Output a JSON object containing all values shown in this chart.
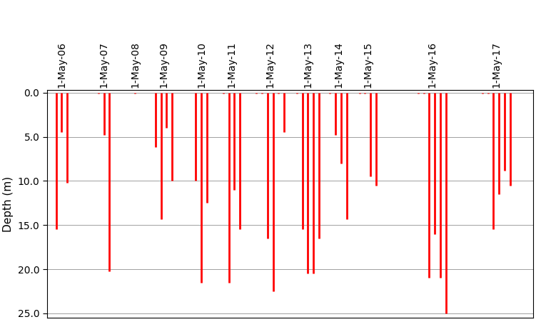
{
  "ylabel": "Depth (m)",
  "bar_color": "#FF0000",
  "background_color": "#FFFFFF",
  "year_labels": [
    "1-May-06",
    "1-May-07",
    "1-May-08",
    "1-May-09",
    "1-May-10",
    "1-May-11",
    "1-May-12",
    "1-May-13",
    "1-May-14",
    "1-May-15",
    "1-May-16",
    "1-May-17"
  ],
  "yticks": [
    0.0,
    5.0,
    10.0,
    15.0,
    20.0,
    25.0
  ],
  "ylim_bottom": 25.5,
  "ylim_top": -0.3,
  "linewidth": 2.0,
  "ylabel_fontsize": 11,
  "tick_fontsize": 10,
  "measurements_per_year": [
    [
      [
        0.25,
        15.5
      ],
      [
        0.55,
        4.5
      ],
      [
        0.85,
        10.2
      ]
    ],
    [
      [
        2.55,
        0.1
      ],
      [
        2.85,
        4.8
      ],
      [
        3.15,
        20.2
      ]
    ],
    [
      [
        4.55,
        0.1
      ]
    ],
    [
      [
        5.65,
        6.2
      ],
      [
        5.95,
        14.3
      ],
      [
        6.25,
        4.0
      ],
      [
        6.55,
        10.0
      ]
    ],
    [
      [
        7.85,
        10.0
      ],
      [
        8.15,
        21.5
      ],
      [
        8.45,
        12.5
      ]
    ],
    [
      [
        9.35,
        0.1
      ],
      [
        9.65,
        21.5
      ],
      [
        9.95,
        11.0
      ],
      [
        10.25,
        15.5
      ]
    ],
    [
      [
        11.15,
        0.1
      ],
      [
        11.45,
        0.1
      ],
      [
        11.75,
        16.5
      ],
      [
        12.05,
        22.5
      ],
      [
        12.35,
        0.1
      ],
      [
        12.65,
        4.5
      ]
    ],
    [
      [
        13.35,
        0.1
      ],
      [
        13.65,
        15.5
      ],
      [
        13.95,
        20.5
      ],
      [
        14.25,
        20.5
      ],
      [
        14.55,
        16.5
      ]
    ],
    [
      [
        15.15,
        0.1
      ],
      [
        15.45,
        4.8
      ],
      [
        15.75,
        8.0
      ],
      [
        16.05,
        14.3
      ]
    ],
    [
      [
        16.75,
        0.1
      ],
      [
        17.05,
        0.1
      ],
      [
        17.35,
        9.5
      ],
      [
        17.65,
        10.5
      ]
    ],
    [
      [
        19.95,
        0.1
      ],
      [
        20.25,
        0.1
      ],
      [
        20.55,
        21.0
      ],
      [
        20.85,
        16.0
      ],
      [
        21.15,
        21.0
      ],
      [
        21.45,
        25.0
      ]
    ],
    [
      [
        23.45,
        0.1
      ],
      [
        23.75,
        0.1
      ],
      [
        24.05,
        15.5
      ],
      [
        24.35,
        11.5
      ],
      [
        24.65,
        8.8
      ],
      [
        24.95,
        10.5
      ]
    ]
  ],
  "xlim": [
    -0.25,
    26.2
  ]
}
